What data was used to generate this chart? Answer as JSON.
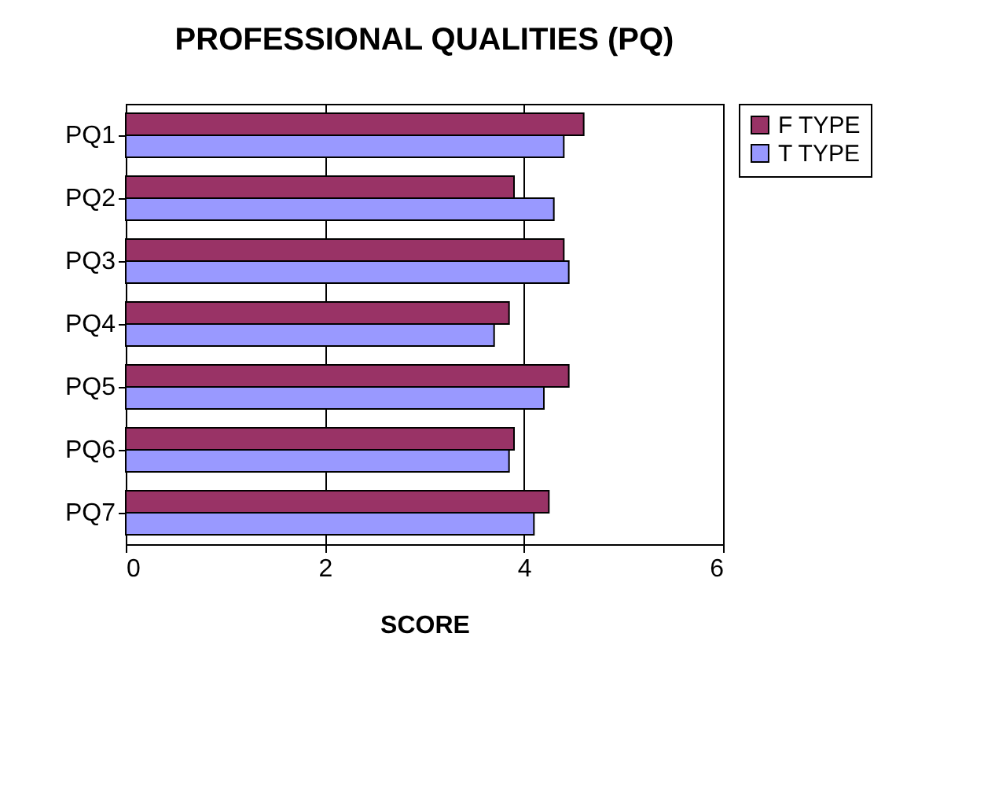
{
  "chart_data": {
    "type": "bar",
    "orientation": "horizontal",
    "title": "PROFESSIONAL QUALITIES (PQ)",
    "xlabel": "SCORE",
    "categories": [
      "PQ1",
      "PQ2",
      "PQ3",
      "PQ4",
      "PQ5",
      "PQ6",
      "PQ7"
    ],
    "series": [
      {
        "name": "F TYPE",
        "color": "#993366",
        "values": [
          4.6,
          3.9,
          4.4,
          3.85,
          4.45,
          3.9,
          4.25
        ]
      },
      {
        "name": "T TYPE",
        "color": "#9999ff",
        "values": [
          4.4,
          4.3,
          4.45,
          3.7,
          4.2,
          3.85,
          4.1
        ]
      }
    ],
    "xlim": [
      0,
      6
    ],
    "xticks": [
      0,
      2,
      4,
      6
    ],
    "grid": "x",
    "legend": "right"
  }
}
